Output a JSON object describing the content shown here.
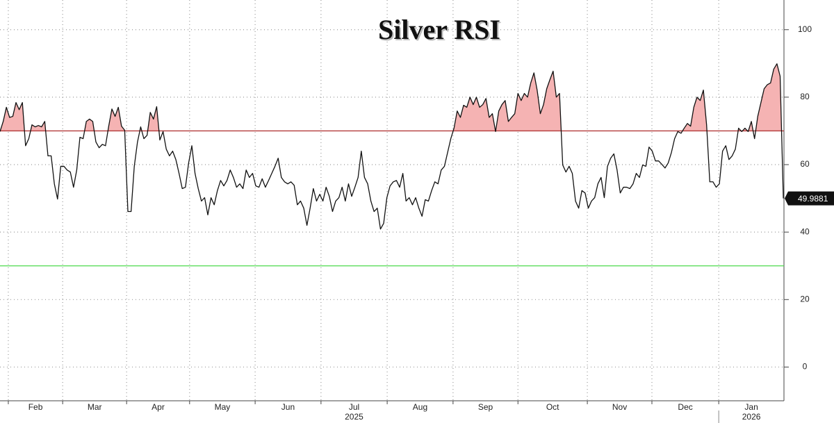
{
  "chart_data": {
    "type": "line",
    "title": "Silver RSI",
    "values": [
      69.8,
      72.8,
      77,
      74,
      74.3,
      78.4,
      76.3,
      78.4,
      65.6,
      67.7,
      71.8,
      71.2,
      71.6,
      71.2,
      72.8,
      62.6,
      62.6,
      54.3,
      49.8,
      59.5,
      59.5,
      58.4,
      57.8,
      53.3,
      58.4,
      68.1,
      67.7,
      72.8,
      73.5,
      72.8,
      66.7,
      65,
      66,
      65.6,
      71.4,
      76.5,
      74.3,
      77,
      71.4,
      70.2,
      46.1,
      46.1,
      59.5,
      66.7,
      71.2,
      67.7,
      68.7,
      75.5,
      73.5,
      77.2,
      67.3,
      69.8,
      64.6,
      62.6,
      64,
      61.5,
      57.4,
      52.9,
      53.3,
      60.5,
      65.6,
      57.4,
      52.9,
      49.2,
      50.2,
      45.1,
      50.2,
      48.1,
      52.3,
      55.3,
      53.7,
      55.3,
      58.4,
      56.2,
      53.3,
      54.3,
      52.9,
      58.4,
      56.2,
      57.4,
      53.7,
      53.3,
      55.8,
      53.3,
      55.3,
      57.4,
      59.5,
      61.9,
      56.2,
      54.9,
      54.3,
      54.9,
      53.9,
      48.1,
      49.2,
      47.1,
      42,
      47.1,
      52.9,
      49.2,
      51.2,
      49.2,
      53.3,
      50.6,
      46.1,
      49.2,
      50.2,
      53.3,
      49.2,
      54.3,
      50.6,
      53.3,
      56.2,
      64,
      56.2,
      54.3,
      49.2,
      46.1,
      47.1,
      40.9,
      42.6,
      50.2,
      53.7,
      54.9,
      55.3,
      53.3,
      57.4,
      49.2,
      50.2,
      48.1,
      50.2,
      47.1,
      44.7,
      49.6,
      49.2,
      52.3,
      54.9,
      54.3,
      58.4,
      59.5,
      63.6,
      67.7,
      70.8,
      75.9,
      74,
      77.6,
      77,
      80,
      77.8,
      80,
      77,
      77.8,
      79.6,
      74,
      75.1,
      69.8,
      75.9,
      77.8,
      79,
      72.8,
      74,
      75.1,
      81.1,
      79,
      81.1,
      80,
      84.2,
      87.2,
      82.1,
      75.1,
      77.8,
      82.5,
      85.2,
      87.7,
      80,
      81.1,
      59.9,
      57.8,
      59.5,
      57.4,
      49.2,
      47.1,
      52.3,
      51.6,
      47.1,
      49.2,
      50.2,
      54.3,
      56.2,
      50.2,
      59.5,
      61.9,
      63.2,
      58.4,
      51.6,
      53.3,
      53.3,
      52.9,
      54.3,
      57.4,
      56.2,
      59.9,
      59.5,
      65.2,
      64,
      61.1,
      61.1,
      60.1,
      59,
      60.5,
      63.6,
      67.7,
      69.8,
      69.3,
      70.8,
      72.2,
      71.4,
      77,
      80,
      79,
      82.1,
      71.8,
      54.9,
      54.9,
      53.3,
      54.3,
      64,
      65.6,
      61.5,
      62.6,
      64.6,
      70.8,
      69.8,
      70.8,
      69.8,
      72.8,
      67.7,
      74.3,
      78.4,
      82.5,
      83.7,
      84.2,
      88.3,
      89.9,
      86.2,
      49.9881
    ],
    "color": "#111111",
    "xlim": [
      0,
      245.2
    ],
    "xticks": [
      {
        "value": 2.6,
        "label": "Feb"
      },
      {
        "value": 19.6,
        "label": "Mar"
      },
      {
        "value": 39.6,
        "label": "Apr"
      },
      {
        "value": 59.3,
        "label": "May"
      },
      {
        "value": 79.8,
        "label": "Jun"
      },
      {
        "value": 100.4,
        "label": "Jul"
      },
      {
        "value": 121.1,
        "label": "Aug"
      },
      {
        "value": 141.7,
        "label": "Sep"
      },
      {
        "value": 162,
        "label": "Oct"
      },
      {
        "value": 183.7,
        "label": "Nov"
      },
      {
        "value": 203.9,
        "label": "Dec"
      },
      {
        "value": 224.8,
        "label": "Jan"
      }
    ],
    "years": [
      {
        "value": 100.4,
        "label": "2025"
      },
      {
        "value": 224.8,
        "label": "2026"
      }
    ],
    "ylim": [
      -10,
      108.8
    ],
    "yticks": [
      0,
      20,
      40,
      60,
      80,
      100
    ],
    "y_axis_side": "right",
    "grid": true,
    "reference_lines": [
      {
        "value": 70,
        "color": "#b23a3a"
      },
      {
        "value": 30,
        "color": "#4cd94c"
      }
    ],
    "fill_above": {
      "value": 70,
      "color": "#f5b3b3"
    }
  }
}
